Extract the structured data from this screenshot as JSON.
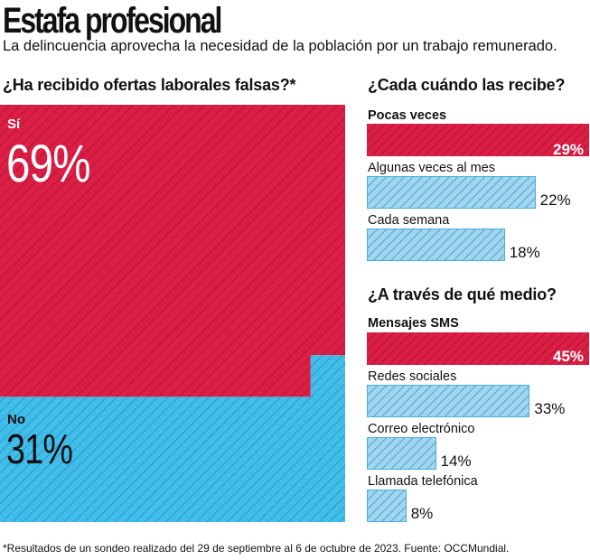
{
  "title": "Estafa profesional",
  "subtitle": "La delincuencia aprovecha la necesidad de la población por un trabajo remunerado.",
  "footnote": "*Resultados de un sondeo realizado del 29 de septiembre al 6 de octubre de 2023. Fuente: OCCMundial.",
  "colors": {
    "red": "#dc1e45",
    "blue": "#41bde9",
    "light_blue": "#9fd6f0"
  },
  "chart_data": [
    {
      "type": "waffle",
      "title": "¿Ha recibido ofertas laborales falsas?*",
      "categories": [
        "Sí",
        "No"
      ],
      "values": [
        69,
        31
      ],
      "value_labels": [
        "69%",
        "31%"
      ],
      "colors": [
        "#dc1e45",
        "#41bde9"
      ]
    },
    {
      "type": "bar",
      "title": "¿Cada cuándo las recibe?",
      "categories": [
        "Pocas veces",
        "Algunas veces al mes",
        "Cada semana"
      ],
      "values": [
        29,
        22,
        18
      ],
      "value_labels": [
        "29%",
        "22%",
        "18%"
      ],
      "highlight_index": 0,
      "xlim": [
        0,
        29
      ]
    },
    {
      "type": "bar",
      "title": "¿A través de qué medio?",
      "categories": [
        "Mensajes SMS",
        "Redes sociales",
        "Correo electrónico",
        "Llamada telefónica"
      ],
      "values": [
        45,
        33,
        14,
        8
      ],
      "value_labels": [
        "45%",
        "33%",
        "14%",
        "8%"
      ],
      "highlight_index": 0,
      "xlim": [
        0,
        45
      ]
    }
  ]
}
